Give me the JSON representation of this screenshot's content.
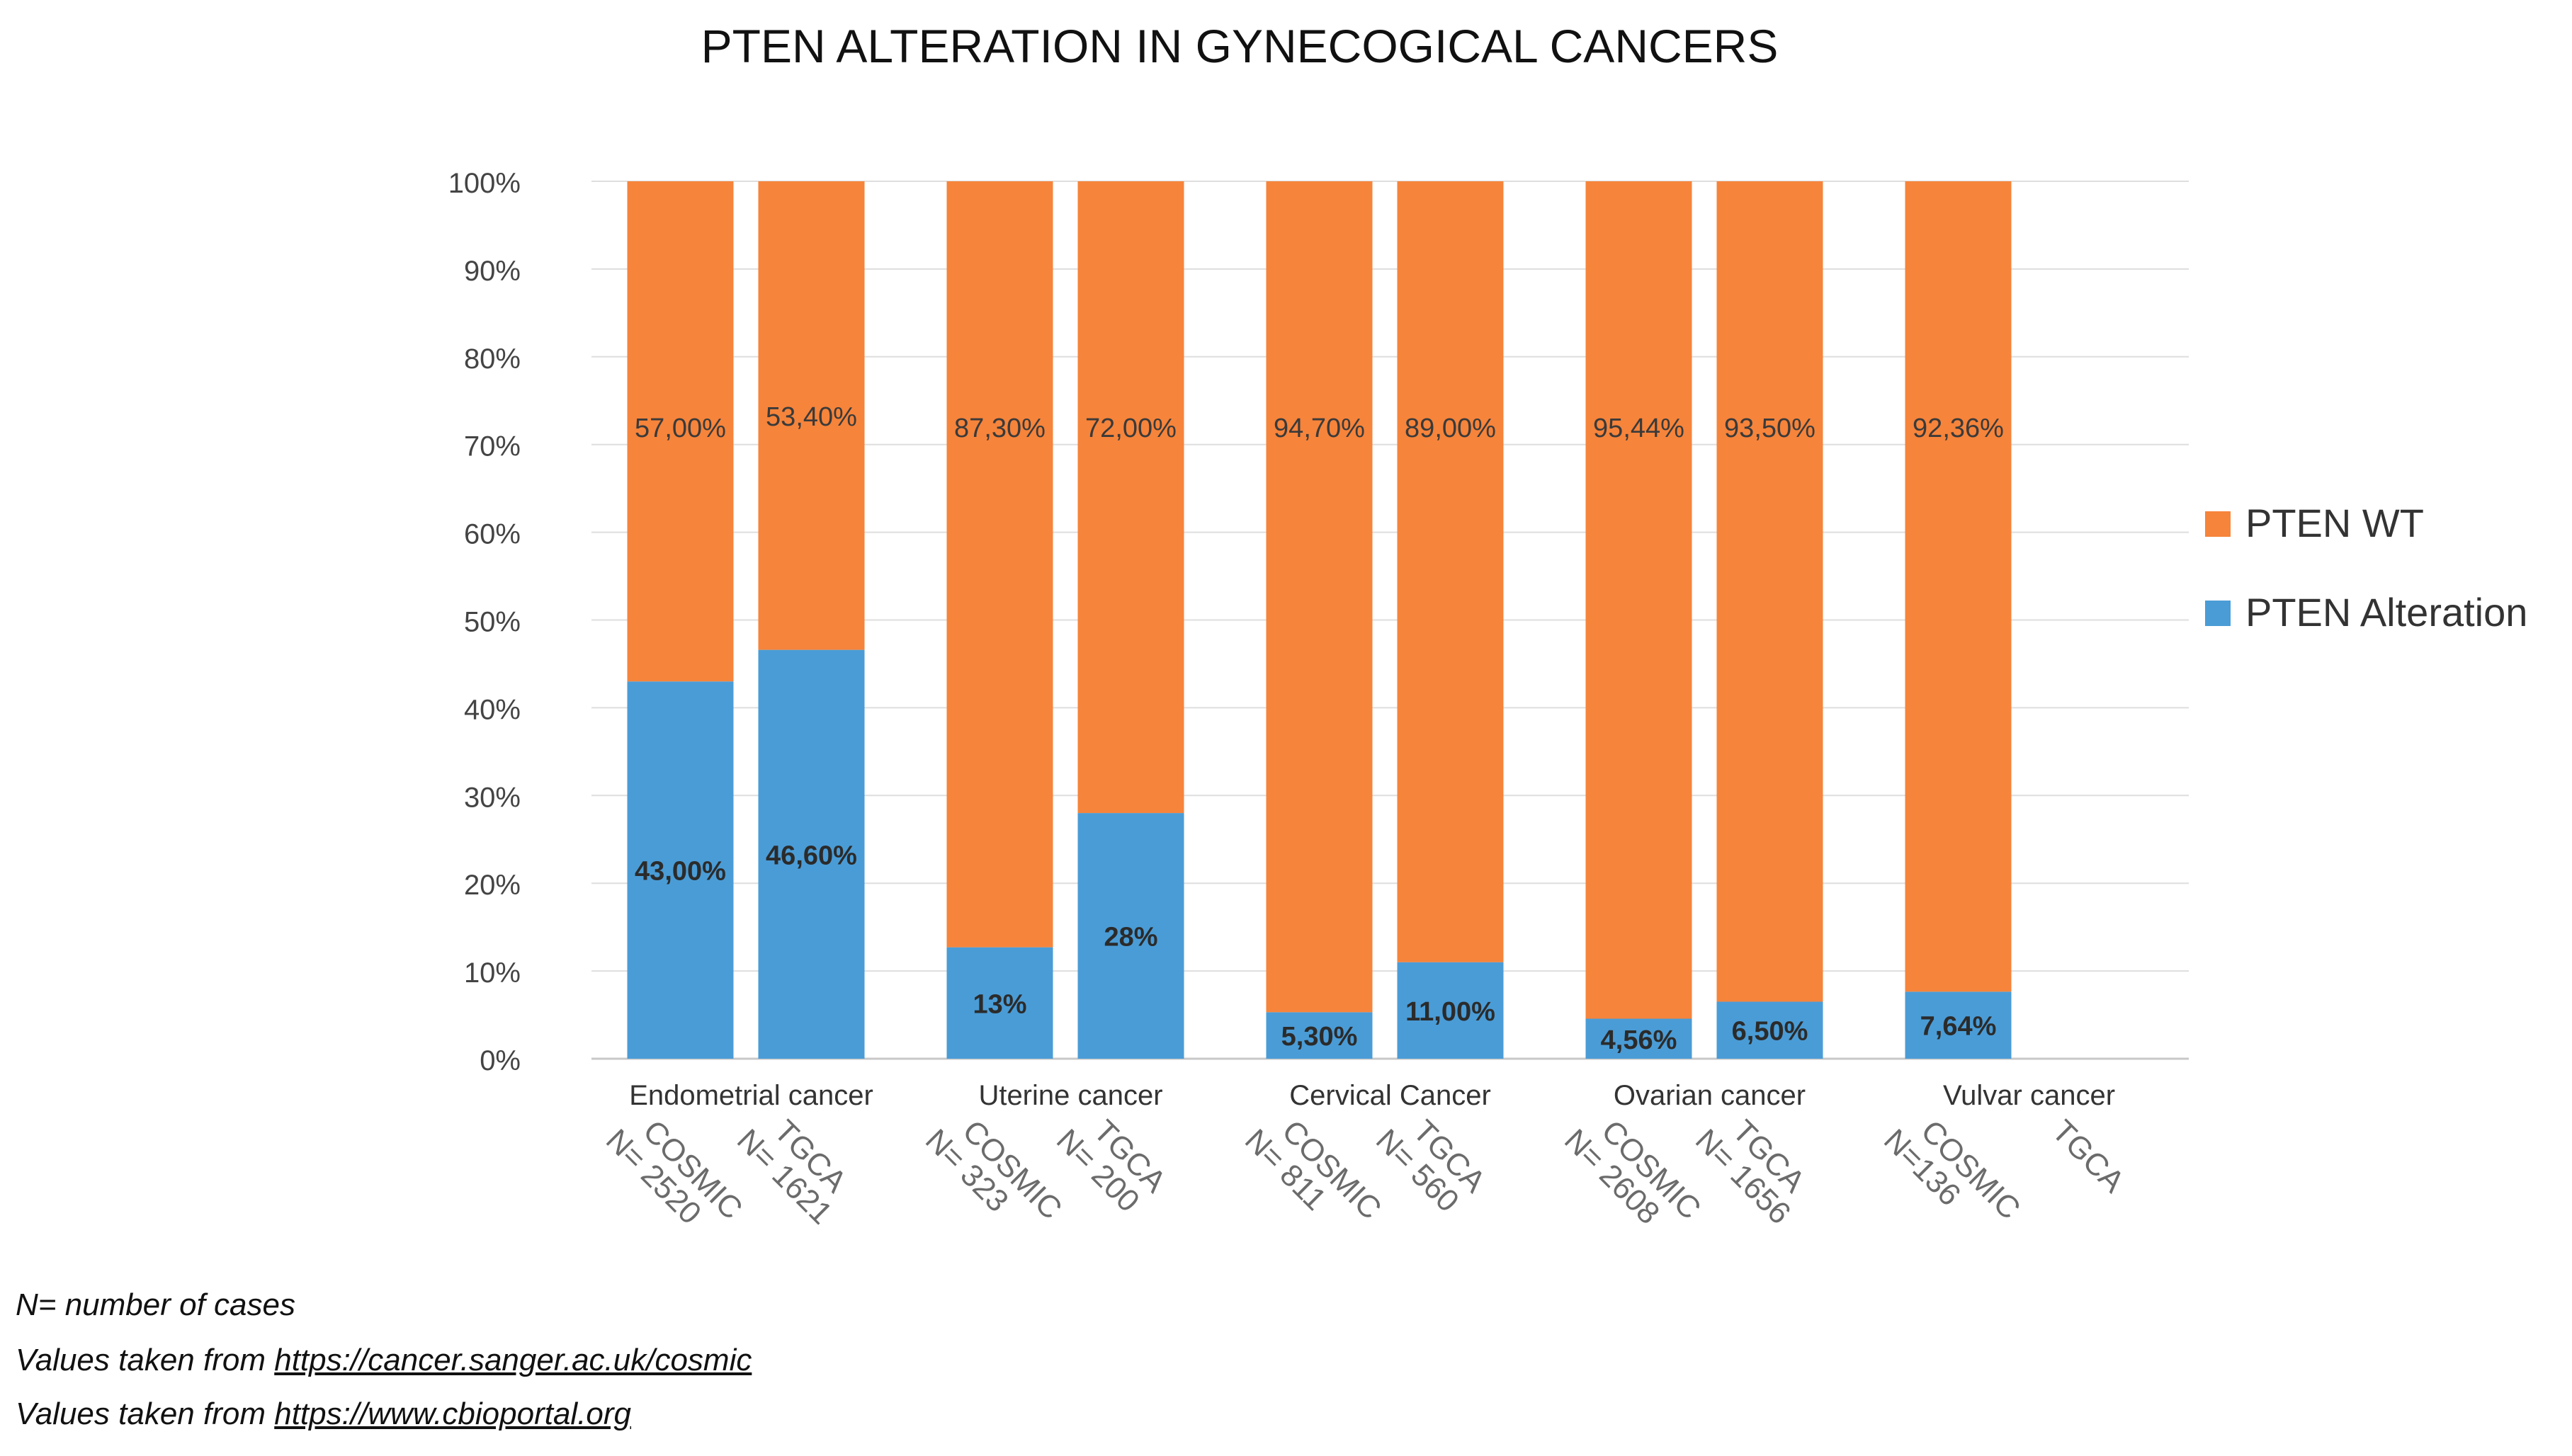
{
  "chart_data": {
    "type": "bar",
    "stacked": true,
    "title": "PTEN ALTERATION IN GYNECOGICAL CANCERS",
    "y_ticks": [
      "0%",
      "10%",
      "20%",
      "30%",
      "40%",
      "50%",
      "60%",
      "70%",
      "80%",
      "90%",
      "100%"
    ],
    "ylim": [
      0,
      100
    ],
    "groups": [
      {
        "name": "Endometrial cancer",
        "bars": [
          {
            "source": "COSMIC",
            "n": "N= 2520",
            "alteration": 43.0,
            "wt": 57.0,
            "alteration_label": "43,00%",
            "wt_label": "57,00%"
          },
          {
            "source": "TGCA",
            "n": "N= 1621",
            "alteration": 46.6,
            "wt": 53.4,
            "alteration_label": "46,60%",
            "wt_label": "53,40%"
          }
        ]
      },
      {
        "name": "Uterine cancer",
        "bars": [
          {
            "source": "COSMIC",
            "n": "N= 323",
            "alteration": 12.7,
            "wt": 87.3,
            "alteration_label": "13%",
            "wt_label": "87,30%"
          },
          {
            "source": "TGCA",
            "n": "N= 200",
            "alteration": 28.0,
            "wt": 72.0,
            "alteration_label": "28%",
            "wt_label": "72,00%"
          }
        ]
      },
      {
        "name": "Cervical Cancer",
        "bars": [
          {
            "source": "COSMIC",
            "n": "N= 811",
            "alteration": 5.3,
            "wt": 94.7,
            "alteration_label": "5,30%",
            "wt_label": "94,70%"
          },
          {
            "source": "TGCA",
            "n": "N= 560",
            "alteration": 11.0,
            "wt": 89.0,
            "alteration_label": "11,00%",
            "wt_label": "89,00%"
          }
        ]
      },
      {
        "name": "Ovarian cancer",
        "bars": [
          {
            "source": "COSMIC",
            "n": "N= 2608",
            "alteration": 4.56,
            "wt": 95.44,
            "alteration_label": "4,56%",
            "wt_label": "95,44%"
          },
          {
            "source": "TGCA",
            "n": "N= 1656",
            "alteration": 6.5,
            "wt": 93.5,
            "alteration_label": "6,50%",
            "wt_label": "93,50%"
          }
        ]
      },
      {
        "name": "Vulvar cancer",
        "bars": [
          {
            "source": "COSMIC",
            "n": "N=136",
            "alteration": 7.64,
            "wt": 92.36,
            "alteration_label": "7,64%",
            "wt_label": "92,36%"
          },
          {
            "source": "TGCA",
            "n": "",
            "alteration": null,
            "wt": null,
            "alteration_label": "",
            "wt_label": ""
          }
        ]
      }
    ],
    "series": [
      {
        "name": "PTEN WT",
        "color": "#F6843B"
      },
      {
        "name": "PTEN Alteration",
        "color": "#4A9CD6"
      }
    ],
    "legend": "right",
    "grid": true
  },
  "footnotes": {
    "n_note": "N= number of cases",
    "source1_prefix": "Values taken from ",
    "source1_link": "https://cancer.sanger.ac.uk/cosmic",
    "source2_prefix": "Values taken from ",
    "source2_link": "https://www.cbioportal.org"
  }
}
